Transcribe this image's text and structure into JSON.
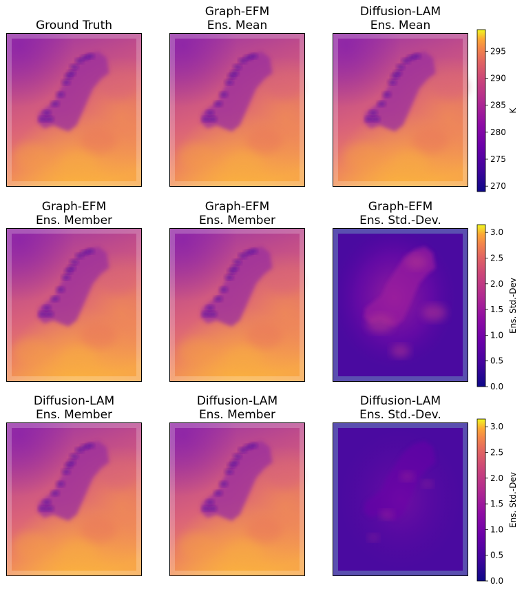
{
  "chart_data": {
    "type": "heatmap",
    "colormap": "plasma",
    "rows": [
      {
        "panels": [
          {
            "title_lines": [
              "Ground Truth"
            ],
            "kind": "temperature"
          },
          {
            "title_lines": [
              "Graph-EFM",
              "Ens. Mean"
            ],
            "kind": "temperature"
          },
          {
            "title_lines": [
              "Diffusion-LAM",
              "Ens. Mean"
            ],
            "kind": "temperature"
          }
        ],
        "colorbar": {
          "label": "K",
          "range": [
            269,
            299
          ],
          "ticks": [
            270,
            275,
            280,
            285,
            290,
            295
          ]
        }
      },
      {
        "panels": [
          {
            "title_lines": [
              "Graph-EFM",
              "Ens. Member"
            ],
            "kind": "temperature"
          },
          {
            "title_lines": [
              "Graph-EFM",
              "Ens. Member"
            ],
            "kind": "temperature"
          },
          {
            "title_lines": [
              "Graph-EFM",
              "Ens. Std.-Dev."
            ],
            "kind": "stddev"
          }
        ],
        "colorbar": {
          "label": "Ens. Std.-Dev",
          "range": [
            0.0,
            3.15
          ],
          "ticks": [
            "0.0",
            "0.5",
            "1.0",
            "1.5",
            "2.0",
            "2.5",
            "3.0"
          ]
        }
      },
      {
        "panels": [
          {
            "title_lines": [
              "Diffusion-LAM",
              "Ens. Member"
            ],
            "kind": "temperature"
          },
          {
            "title_lines": [
              "Diffusion-LAM",
              "Ens. Member"
            ],
            "kind": "temperature"
          },
          {
            "title_lines": [
              "Diffusion-LAM",
              "Ens. Std.-Dev."
            ],
            "kind": "stddev"
          }
        ],
        "colorbar": {
          "label": "Ens. Std.-Dev",
          "range": [
            0.0,
            3.15
          ],
          "ticks": [
            "0.0",
            "0.5",
            "1.0",
            "1.5",
            "2.0",
            "2.5",
            "3.0"
          ]
        }
      }
    ]
  }
}
